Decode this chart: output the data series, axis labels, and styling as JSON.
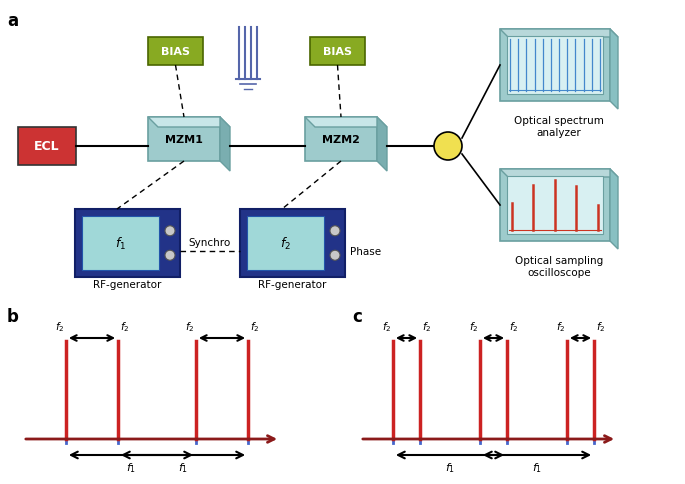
{
  "bg_color": "#ffffff",
  "ecl_color": "#cc3333",
  "bias_color": "#88aa22",
  "mzm_color": "#9ecbcc",
  "mzm_top_color": "#c8e6e8",
  "mzm_right_color": "#7aaeb0",
  "mzm_edge_color": "#6a9fa0",
  "rf_body_color": "#223388",
  "rf_screen_color": "#a0d8d8",
  "rf_edge_color": "#111f66",
  "coupler_color": "#f0e050",
  "inst_body_color": "#9ecbcc",
  "inst_screen_color": "#d8f0f2",
  "inst_edge_color": "#6a9fa0",
  "pulse_color": "#cc2222",
  "axis_color": "#8b1a1a",
  "blue_tick_color": "#4466cc",
  "osa_lines_color": "#4488cc",
  "oso_spike_color": "#cc3322",
  "signal_line_color": "#5566aa",
  "label_a": "a",
  "label_b": "b",
  "label_c": "c"
}
